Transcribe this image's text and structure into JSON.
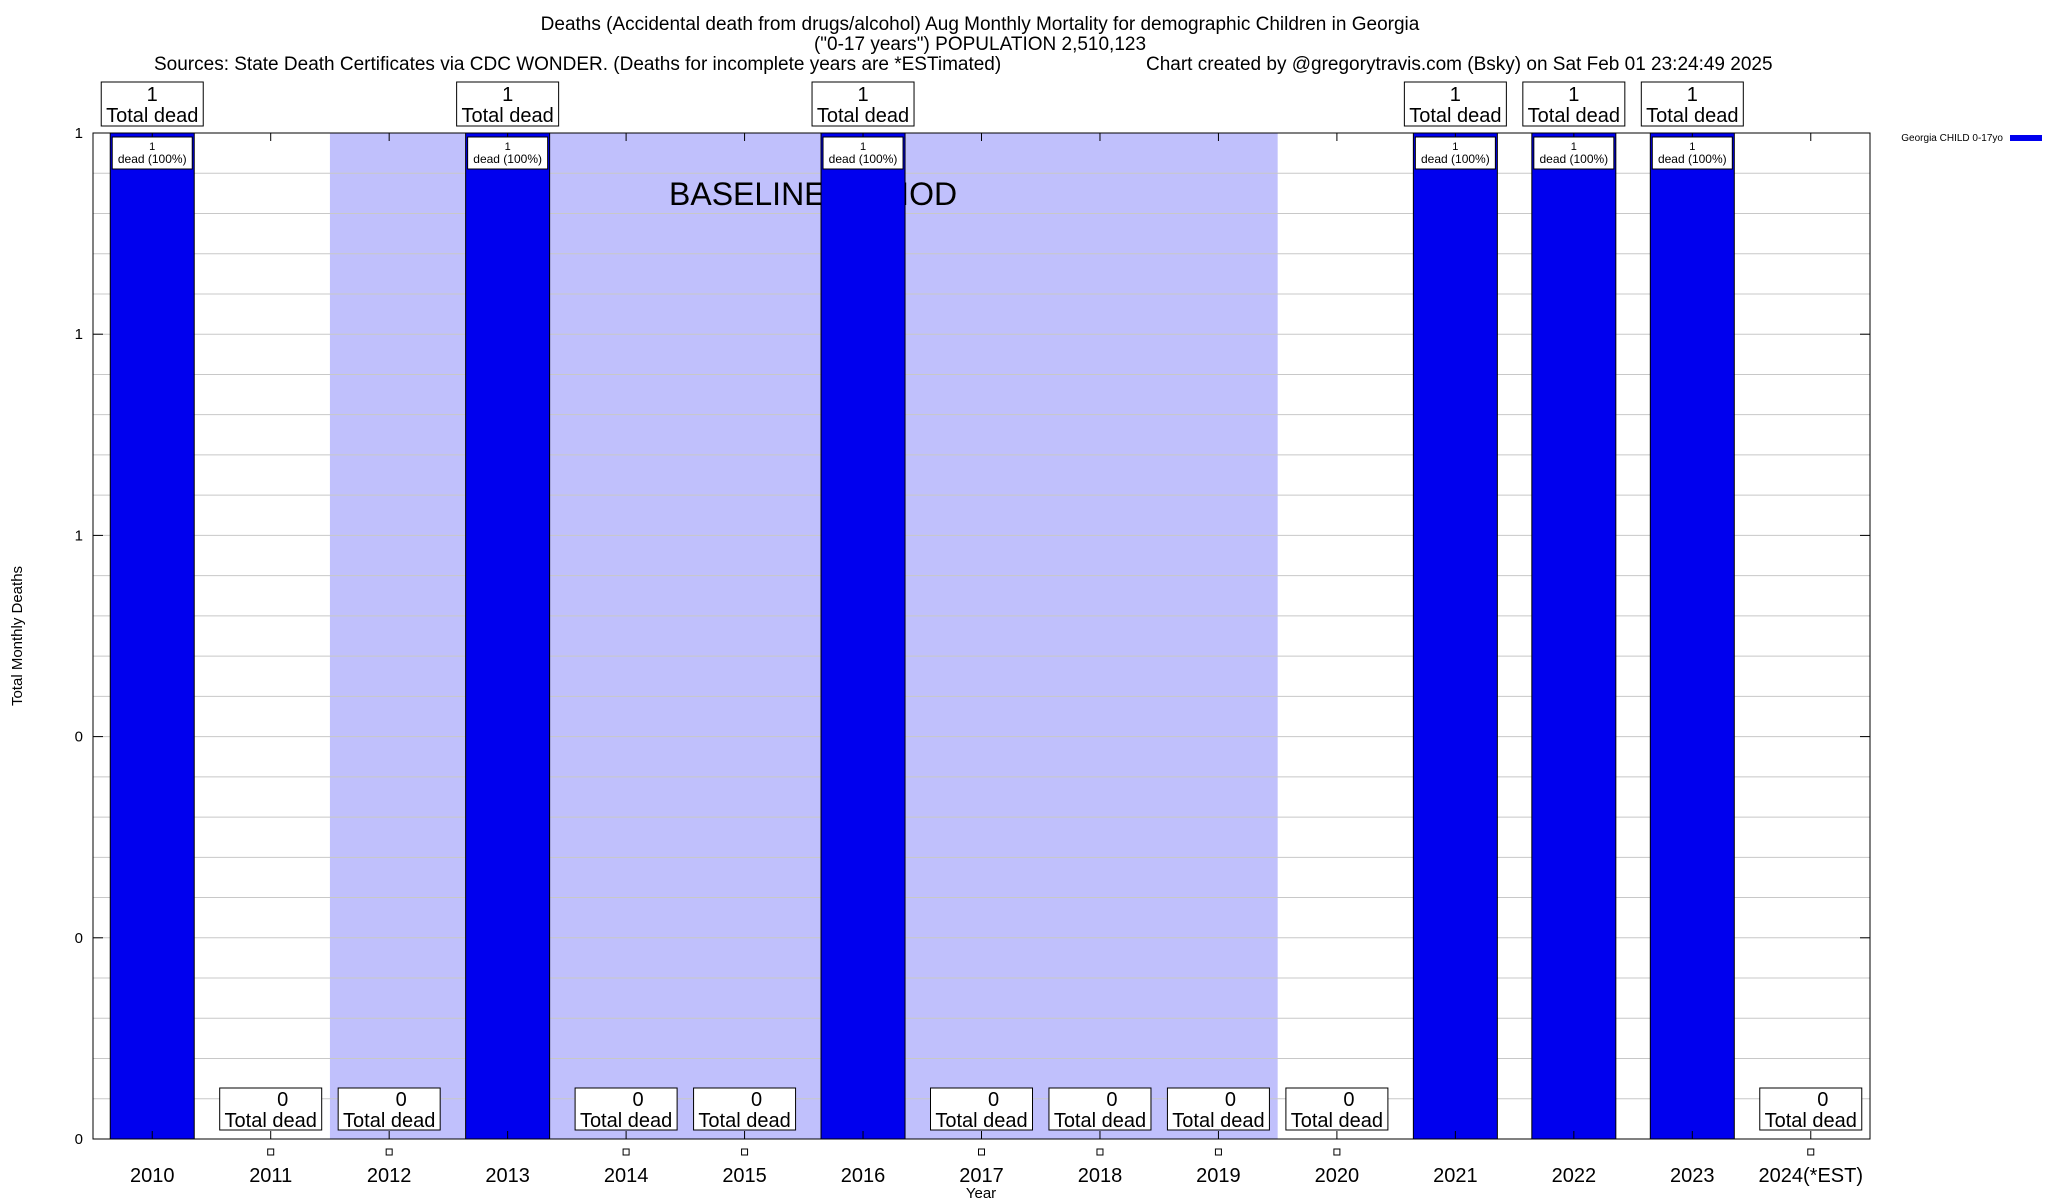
{
  "header": {
    "title_line1": "Deaths (Accidental death from drugs/alcohol) Aug Monthly Mortality for demographic Children in Georgia",
    "title_line2": "(\"0-17 years\") POPULATION 2,510,123",
    "sources": "Sources: State Death Certificates via CDC WONDER. (Deaths for incomplete years are *ESTimated)",
    "credit": "Chart created by @gregorytravis.com (Bsky) on Sat Feb 01 23:24:49 2025"
  },
  "chart_data": {
    "type": "bar",
    "xlabel": "Year",
    "ylabel": "Total Monthly Deaths",
    "ylim": [
      0,
      1
    ],
    "y_tick_labels": [
      "0",
      "0",
      "0",
      "1",
      "1",
      "1"
    ],
    "categories": [
      "2010",
      "2011",
      "2012",
      "2013",
      "2014",
      "2015",
      "2016",
      "2017",
      "2018",
      "2019",
      "2020",
      "2021",
      "2022",
      "2023",
      "2024(*EST)"
    ],
    "series": [
      {
        "name": "Georgia CHILD 0-17yo",
        "color": "#0000ee",
        "values": [
          1,
          0,
          0,
          1,
          0,
          0,
          1,
          0,
          0,
          0,
          0,
          1,
          1,
          1,
          0
        ]
      }
    ],
    "total_label_text": "Total dead",
    "inner_label_text": "dead (100%)",
    "baseline_period": {
      "label": "BASELINE PERIOD",
      "from_category": "2012",
      "to_category": "2019",
      "color": "#c0c0fc"
    },
    "legend_position": "top-right",
    "grid": true
  }
}
